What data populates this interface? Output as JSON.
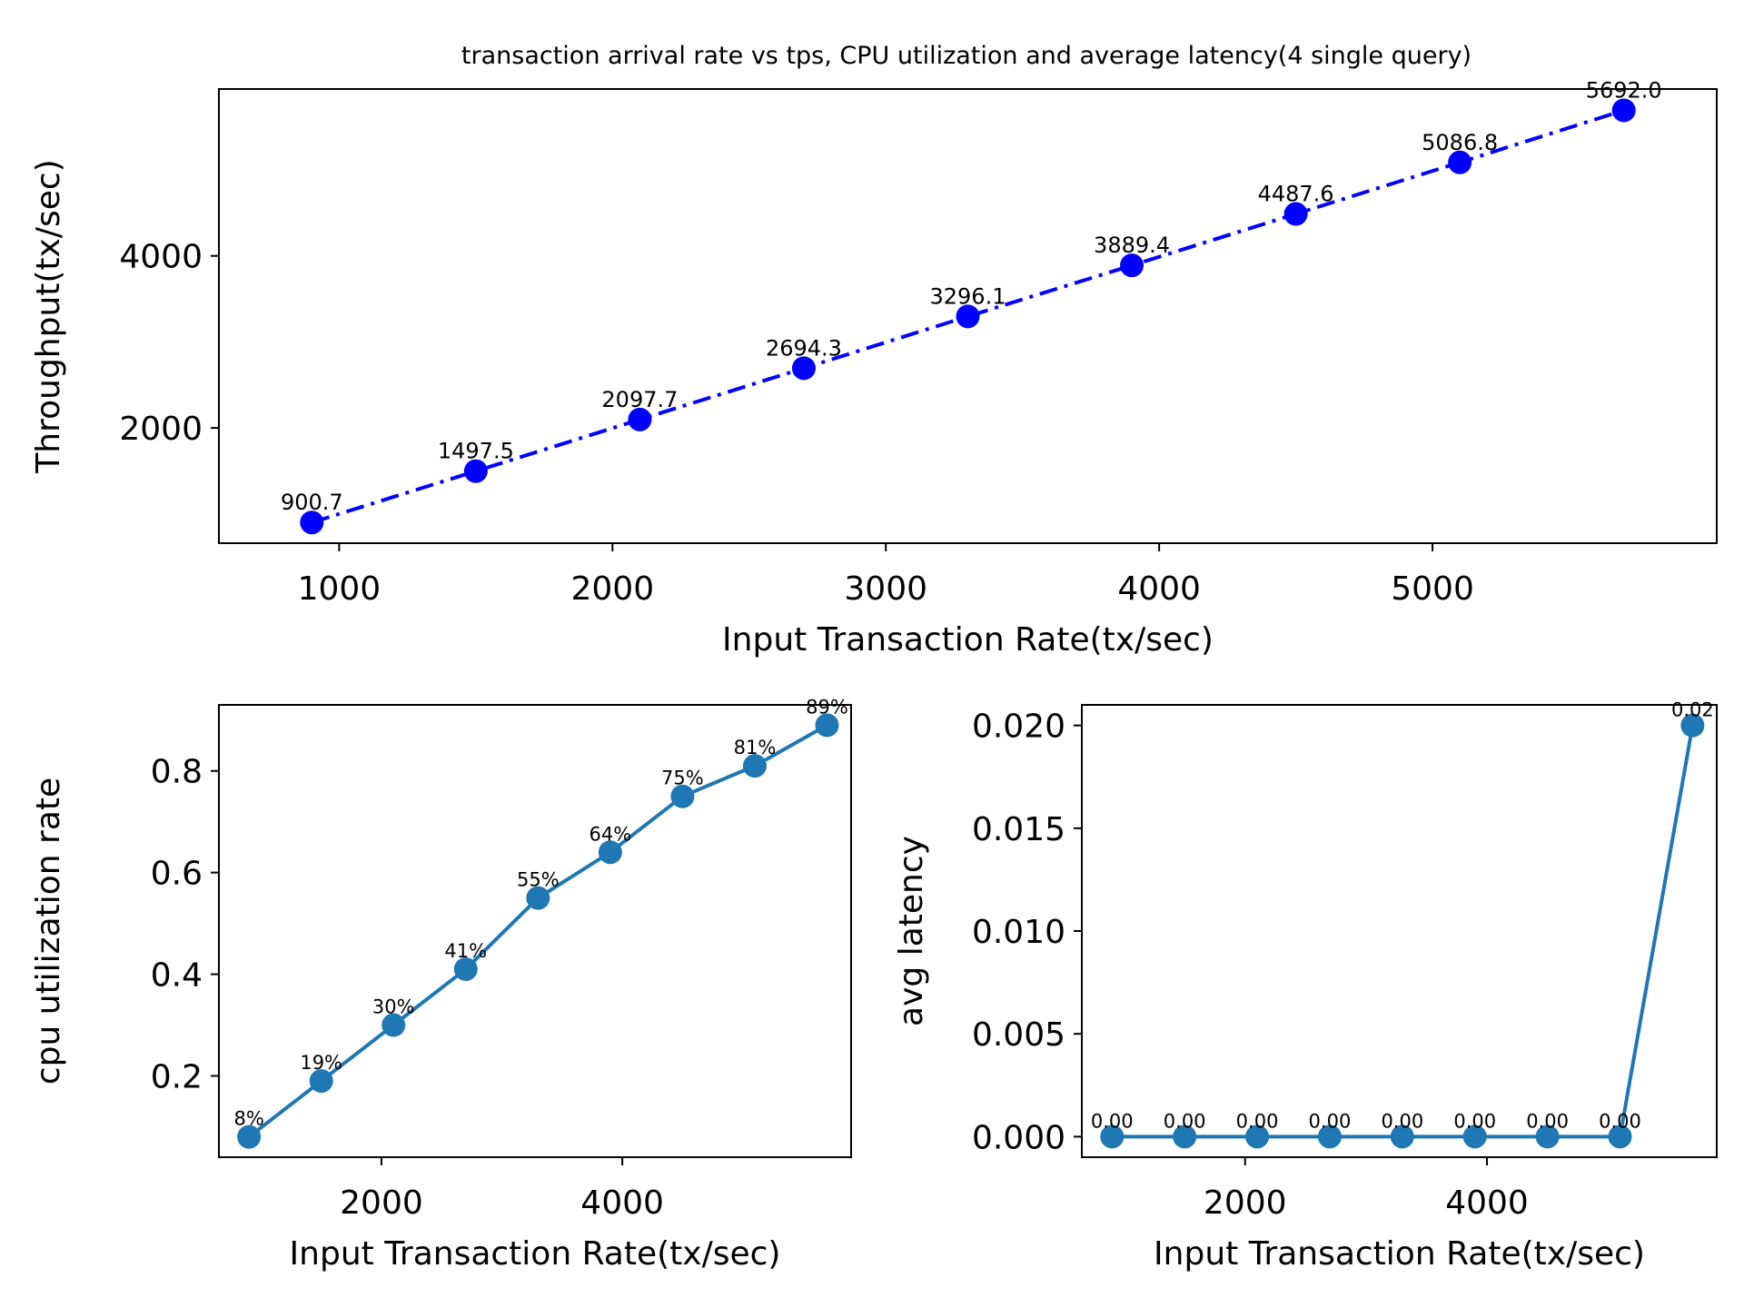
{
  "chart_data": [
    {
      "type": "line",
      "title": "transaction arrival rate vs tps, CPU utilization and average latency(4 single query)",
      "xlabel": "Input Transaction Rate(tx/sec)",
      "ylabel": "Throughput(tx/sec)",
      "x": [
        900,
        1500,
        2100,
        2700,
        3300,
        3900,
        4500,
        5100,
        5700
      ],
      "series": [
        {
          "name": "throughput",
          "values": [
            900.7,
            1497.5,
            2097.7,
            2694.3,
            3296.1,
            3889.4,
            4487.6,
            5086.8,
            5692.0
          ]
        }
      ],
      "data_labels": [
        "900.7",
        "1497.5",
        "2097.7",
        "2694.3",
        "3296.1",
        "3889.4",
        "4487.6",
        "5086.8",
        "5692.0"
      ],
      "xlim": [
        560,
        6040
      ],
      "ylim": [
        660,
        5940
      ],
      "xticks": [
        1000,
        2000,
        3000,
        4000,
        5000
      ],
      "xtick_labels": [
        "1000",
        "2000",
        "3000",
        "4000",
        "5000"
      ],
      "yticks": [
        2000,
        4000
      ],
      "ytick_labels": [
        "2000",
        "4000"
      ],
      "line_style": "dash-dot",
      "color": "#0000ff"
    },
    {
      "type": "line",
      "xlabel": "Input Transaction Rate(tx/sec)",
      "ylabel": "cpu utilization rate",
      "x": [
        900,
        1500,
        2100,
        2700,
        3300,
        3900,
        4500,
        5100,
        5700
      ],
      "series": [
        {
          "name": "cpu",
          "values": [
            0.08,
            0.19,
            0.3,
            0.41,
            0.55,
            0.64,
            0.75,
            0.81,
            0.89
          ]
        }
      ],
      "data_labels": [
        "8%",
        "19%",
        "30%",
        "41%",
        "55%",
        "64%",
        "75%",
        "81%",
        "89%"
      ],
      "xlim": [
        650,
        5900
      ],
      "ylim": [
        0.04,
        0.93
      ],
      "xticks": [
        2000,
        4000
      ],
      "xtick_labels": [
        "2000",
        "4000"
      ],
      "yticks": [
        0.2,
        0.4,
        0.6,
        0.8
      ],
      "ytick_labels": [
        "0.2",
        "0.4",
        "0.6",
        "0.8"
      ],
      "line_style": "solid",
      "color": "#1f77b4"
    },
    {
      "type": "line",
      "xlabel": "Input Transaction Rate(tx/sec)",
      "ylabel": "avg latency",
      "x": [
        900,
        1500,
        2100,
        2700,
        3300,
        3900,
        4500,
        5100,
        5700
      ],
      "series": [
        {
          "name": "latency",
          "values": [
            0.0,
            0.0,
            0.0,
            0.0,
            0.0,
            0.0,
            0.0,
            0.0,
            0.02
          ]
        }
      ],
      "data_labels": [
        "0.00",
        "0.00",
        "0.00",
        "0.00",
        "0.00",
        "0.00",
        "0.00",
        "0.00",
        "0.02"
      ],
      "xlim": [
        650,
        5900
      ],
      "ylim": [
        -0.001,
        0.021
      ],
      "xticks": [
        2000,
        4000
      ],
      "xtick_labels": [
        "2000",
        "4000"
      ],
      "yticks": [
        0.0,
        0.005,
        0.01,
        0.015,
        0.02
      ],
      "ytick_labels": [
        "0.000",
        "0.005",
        "0.010",
        "0.015",
        "0.020"
      ],
      "line_style": "solid",
      "color": "#1f77b4"
    }
  ]
}
